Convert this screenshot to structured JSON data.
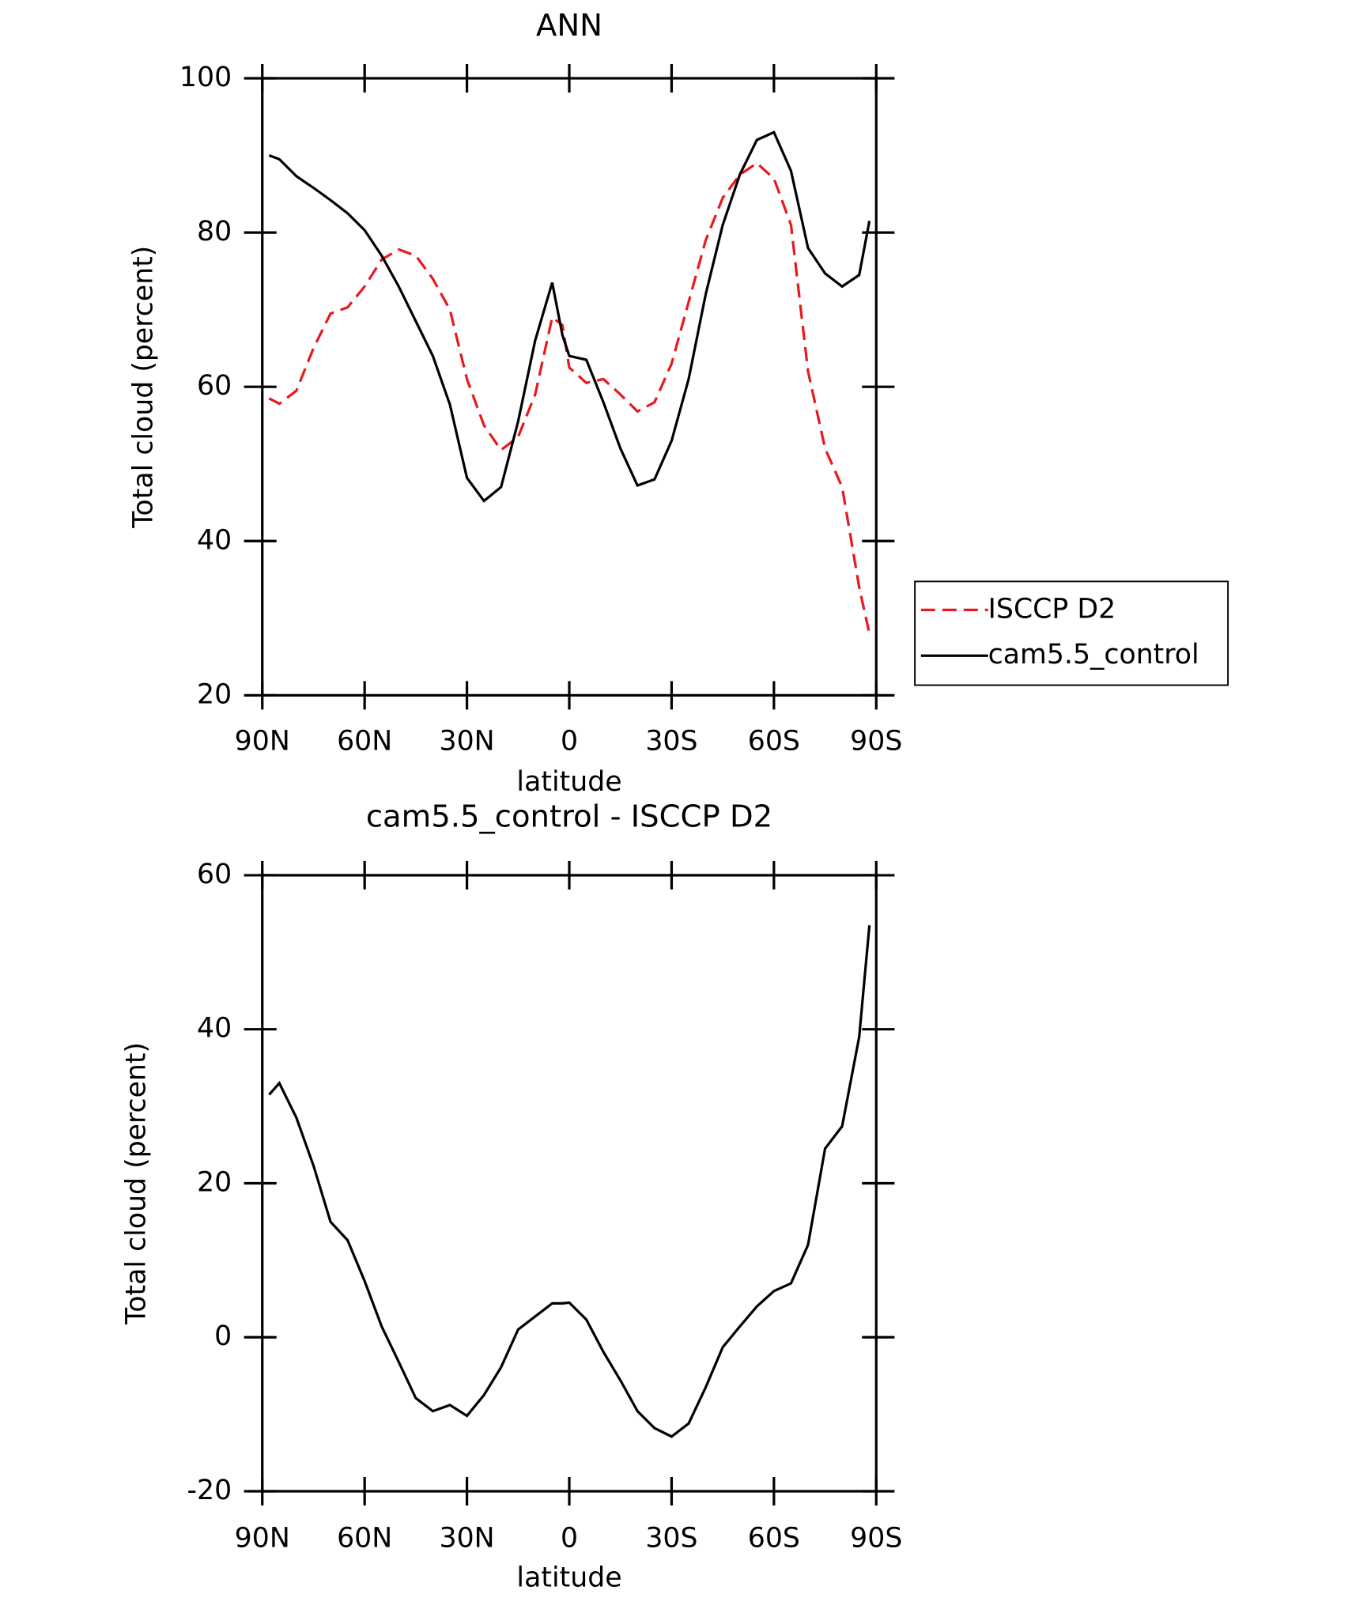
{
  "chart_data": [
    {
      "type": "line",
      "title": "ANN",
      "x_label": "latitude",
      "y_label": "Total cloud (percent)",
      "x": [
        88,
        85,
        80,
        75,
        70,
        65,
        60,
        55,
        50,
        45,
        40,
        35,
        30,
        25,
        20,
        15,
        10,
        5,
        2,
        0,
        -5,
        -10,
        -15,
        -20,
        -25,
        -30,
        -35,
        -40,
        -45,
        -50,
        -55,
        -60,
        -65,
        -70,
        -75,
        -80,
        -85,
        -88
      ],
      "series": [
        {
          "name": "ISCCP D2",
          "color": "#e8191c",
          "line_style": "dashed",
          "values": [
            58.5,
            57.8,
            59.5,
            65,
            69.5,
            70.3,
            73,
            76.5,
            77.8,
            77,
            74,
            70,
            61,
            55,
            51.8,
            53.5,
            59,
            69,
            68,
            62.5,
            60.5,
            61,
            59,
            56.8,
            58,
            63,
            71,
            79,
            84.5,
            87.5,
            89,
            87,
            81,
            62,
            52,
            47,
            34,
            28
          ]
        },
        {
          "name": "cam5.5_control",
          "color": "#000000",
          "line_style": "solid",
          "values": [
            90,
            89.5,
            87.3,
            85.8,
            84.2,
            82.5,
            80.3,
            77,
            73,
            68.5,
            64,
            57.7,
            48.2,
            45.2,
            47,
            55.5,
            66,
            73.5,
            66.7,
            64,
            63.5,
            58,
            52,
            47.2,
            48,
            53,
            61,
            72,
            81,
            87.5,
            92,
            93,
            88,
            78,
            74.7,
            73,
            74.5,
            81.5
          ]
        }
      ],
      "xlim": [
        90,
        -90
      ],
      "xticks": [
        {
          "value": 90,
          "label": "90N"
        },
        {
          "value": 60,
          "label": "60N"
        },
        {
          "value": 30,
          "label": "30N"
        },
        0,
        {
          "value": -30,
          "label": "30S"
        },
        {
          "value": -60,
          "label": "60S"
        },
        {
          "value": -90,
          "label": "90S"
        }
      ],
      "ylim": [
        20,
        100
      ],
      "yticks": [
        20,
        40,
        60,
        80,
        100
      ],
      "legend": "right"
    },
    {
      "type": "line",
      "title": "cam5.5_control - ISCCP D2",
      "x_label": "latitude",
      "y_label": "Total cloud (percent)",
      "x": [
        88,
        85,
        80,
        75,
        70,
        65,
        60,
        55,
        50,
        45,
        40,
        35,
        30,
        25,
        20,
        15,
        10,
        5,
        2,
        0,
        -5,
        -10,
        -15,
        -20,
        -25,
        -30,
        -35,
        -40,
        -45,
        -50,
        -55,
        -60,
        -65,
        -70,
        -75,
        -80,
        -85,
        -88
      ],
      "color": "#000000",
      "values": [
        31.5,
        33,
        28.5,
        22.3,
        15,
        12.6,
        7.3,
        1.4,
        -3.2,
        -7.9,
        -9.6,
        -8.8,
        -10.2,
        -7.5,
        -3.9,
        1,
        2.7,
        4.4,
        4.4,
        4.5,
        2.3,
        -1.9,
        -5.6,
        -9.6,
        -11.8,
        -12.9,
        -11.2,
        -6.5,
        -1.3,
        1.4,
        4,
        6,
        7,
        12,
        24.5,
        27.4,
        39,
        53.5
      ],
      "xlim": [
        90,
        -90
      ],
      "xticks": [
        {
          "value": 90,
          "label": "90N"
        },
        {
          "value": 60,
          "label": "60N"
        },
        {
          "value": 30,
          "label": "30N"
        },
        0,
        {
          "value": -30,
          "label": "30S"
        },
        {
          "value": -60,
          "label": "60S"
        },
        {
          "value": -90,
          "label": "90S"
        }
      ],
      "ylim": [
        -20,
        60
      ],
      "yticks": [
        -20,
        0,
        20,
        40,
        60
      ]
    }
  ]
}
